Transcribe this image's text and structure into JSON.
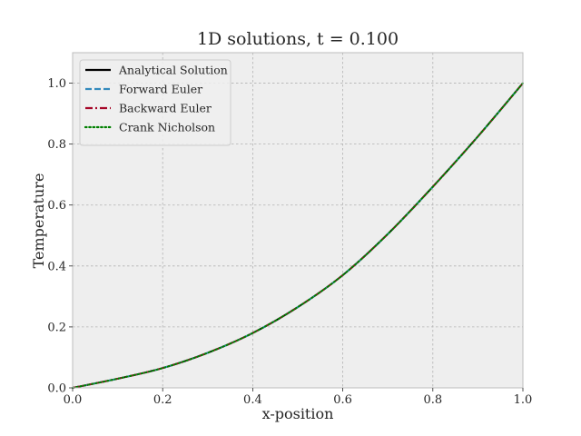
{
  "chart_data": {
    "type": "line",
    "title": "1D solutions, t = 0.100",
    "xlabel": "x-position",
    "ylabel": "Temperature",
    "xlim": [
      0.0,
      1.0
    ],
    "ylim": [
      0.0,
      1.1
    ],
    "xticks": [
      0.0,
      0.2,
      0.4,
      0.6,
      0.8,
      1.0
    ],
    "xtick_labels": [
      "0.0",
      "0.2",
      "0.4",
      "0.6",
      "0.8",
      "1.0"
    ],
    "yticks": [
      0.0,
      0.2,
      0.4,
      0.6,
      0.8,
      1.0
    ],
    "ytick_labels": [
      "0.0",
      "0.2",
      "0.4",
      "0.6",
      "0.8",
      "1.0"
    ],
    "grid": true,
    "legend_position": "top-left",
    "background_color": "#eeeeee",
    "grid_color": "#b2b2b2",
    "x": [
      0.0,
      0.1,
      0.2,
      0.3,
      0.4,
      0.5,
      0.6,
      0.7,
      0.8,
      0.9,
      1.0
    ],
    "series": [
      {
        "name": "Analytical Solution",
        "color": "#000000",
        "linestyle": "solid",
        "values": [
          0.0,
          0.03,
          0.065,
          0.115,
          0.18,
          0.265,
          0.37,
          0.505,
          0.66,
          0.825,
          1.0
        ]
      },
      {
        "name": "Forward Euler",
        "color": "#348abd",
        "linestyle": "dashed",
        "values": [
          0.0,
          0.03,
          0.065,
          0.115,
          0.18,
          0.265,
          0.37,
          0.505,
          0.66,
          0.825,
          1.0
        ]
      },
      {
        "name": "Backward Euler",
        "color": "#a60628",
        "linestyle": "dashdot",
        "values": [
          0.0,
          0.03,
          0.065,
          0.115,
          0.18,
          0.265,
          0.37,
          0.505,
          0.66,
          0.825,
          1.0
        ]
      },
      {
        "name": "Crank Nicholson",
        "color": "#008000",
        "linestyle": "dotted",
        "values": [
          0.0,
          0.03,
          0.065,
          0.115,
          0.18,
          0.265,
          0.37,
          0.505,
          0.66,
          0.825,
          1.0
        ]
      }
    ]
  }
}
